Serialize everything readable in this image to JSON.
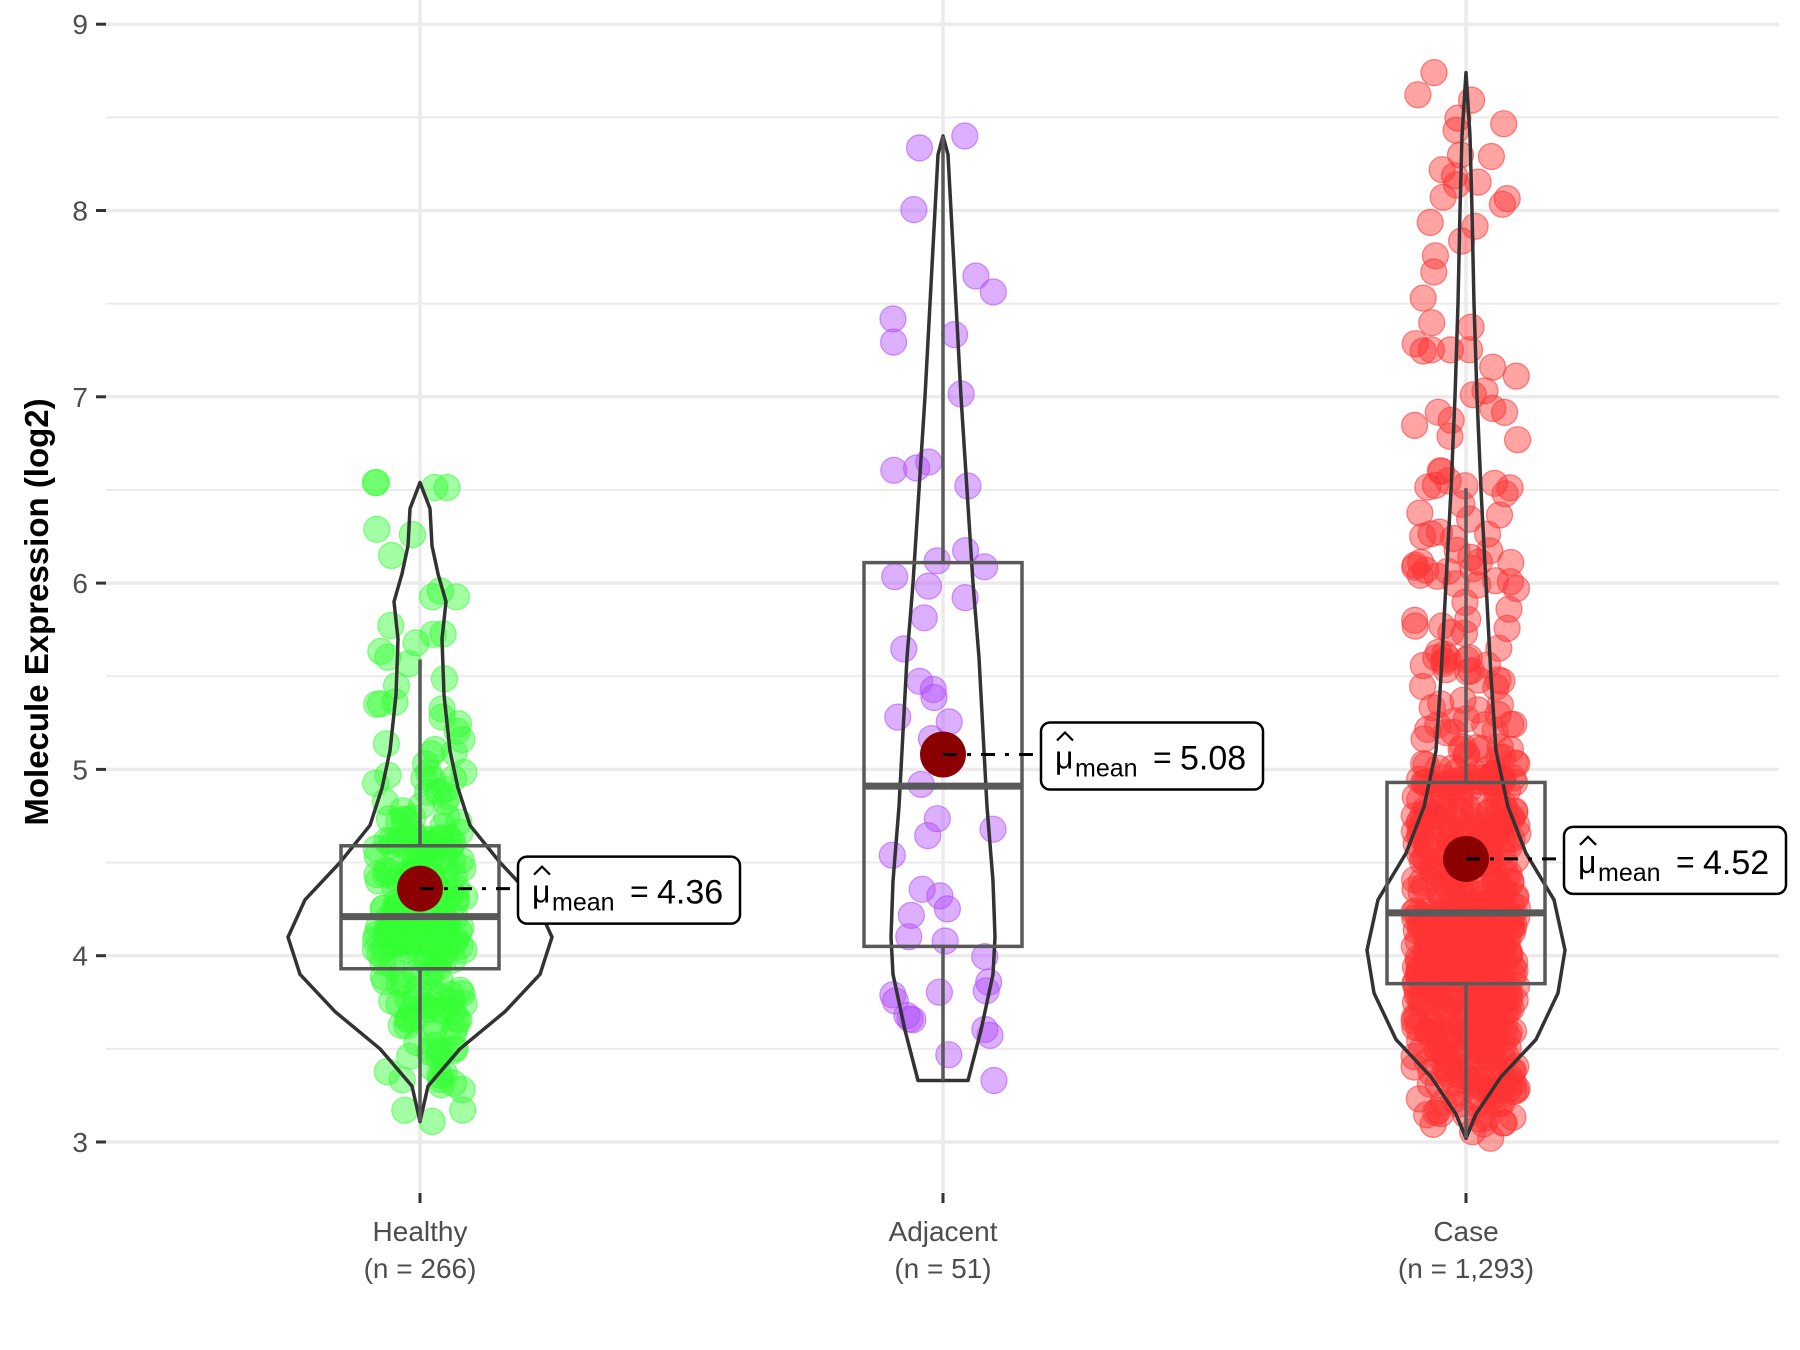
{
  "chart_data": {
    "type": "violin-box-scatter",
    "title": "",
    "xlabel": "",
    "ylabel": "Molecule Expression (log2)",
    "ylim": [
      2.85,
      9.15
    ],
    "yticks": [
      3,
      4,
      5,
      6,
      7,
      8,
      9
    ],
    "grid": true,
    "legend": "none",
    "categories": [
      {
        "name": "Healthy",
        "n_label": "(n = 266)",
        "n": 266,
        "color": "#33FF33",
        "stats": {
          "min": 3.11,
          "q1": 3.93,
          "median": 4.21,
          "q3": 4.59,
          "max": 6.54,
          "whisker_low": 3.11,
          "whisker_high": 5.59,
          "mean": 4.36
        },
        "violin": [
          [
            3.11,
            0
          ],
          [
            3.3,
            8
          ],
          [
            3.5,
            40
          ],
          [
            3.7,
            85
          ],
          [
            3.9,
            120
          ],
          [
            4.1,
            132
          ],
          [
            4.3,
            115
          ],
          [
            4.5,
            80
          ],
          [
            4.7,
            50
          ],
          [
            4.9,
            38
          ],
          [
            5.1,
            30
          ],
          [
            5.4,
            24
          ],
          [
            5.7,
            22
          ],
          [
            5.9,
            26
          ],
          [
            6.05,
            18
          ],
          [
            6.2,
            12
          ],
          [
            6.4,
            10
          ],
          [
            6.54,
            0
          ]
        ],
        "annotation": "4.36"
      },
      {
        "name": "Adjacent",
        "n_label": "(n = 51)",
        "n": 51,
        "color": "#B24DFF",
        "stats": {
          "min": 3.33,
          "q1": 4.05,
          "median": 4.91,
          "q3": 6.11,
          "max": 8.4,
          "whisker_low": 3.33,
          "whisker_high": 8.4,
          "mean": 5.08
        },
        "violin": [
          [
            3.33,
            25
          ],
          [
            3.6,
            38
          ],
          [
            3.9,
            50
          ],
          [
            4.1,
            52
          ],
          [
            4.4,
            50
          ],
          [
            4.8,
            44
          ],
          [
            5.2,
            40
          ],
          [
            5.6,
            36
          ],
          [
            6.0,
            30
          ],
          [
            6.5,
            24
          ],
          [
            7.0,
            18
          ],
          [
            7.5,
            13
          ],
          [
            8.0,
            8
          ],
          [
            8.3,
            5
          ],
          [
            8.4,
            0
          ]
        ],
        "annotation": "5.08"
      },
      {
        "name": "Case",
        "n_label": "(n = 1,293)",
        "n": 1293,
        "color": "#FF3333",
        "stats": {
          "min": 3.02,
          "q1": 3.85,
          "median": 4.23,
          "q3": 4.93,
          "max": 8.74,
          "whisker_low": 3.02,
          "whisker_high": 6.51,
          "mean": 4.52
        },
        "violin": [
          [
            3.02,
            0
          ],
          [
            3.15,
            10
          ],
          [
            3.35,
            35
          ],
          [
            3.55,
            70
          ],
          [
            3.8,
            92
          ],
          [
            4.03,
            99
          ],
          [
            4.3,
            88
          ],
          [
            4.55,
            60
          ],
          [
            4.8,
            42
          ],
          [
            5.1,
            30
          ],
          [
            5.5,
            25
          ],
          [
            6.0,
            20
          ],
          [
            6.5,
            15
          ],
          [
            7.0,
            11
          ],
          [
            7.5,
            8
          ],
          [
            8.0,
            6
          ],
          [
            8.4,
            4
          ],
          [
            8.74,
            0
          ]
        ],
        "annotation": "4.52"
      }
    ],
    "mean_marker_color": "#8B0000",
    "annotation_prefix": "μ̂",
    "annotation_subscript": "mean",
    "annotation_equals": "="
  }
}
